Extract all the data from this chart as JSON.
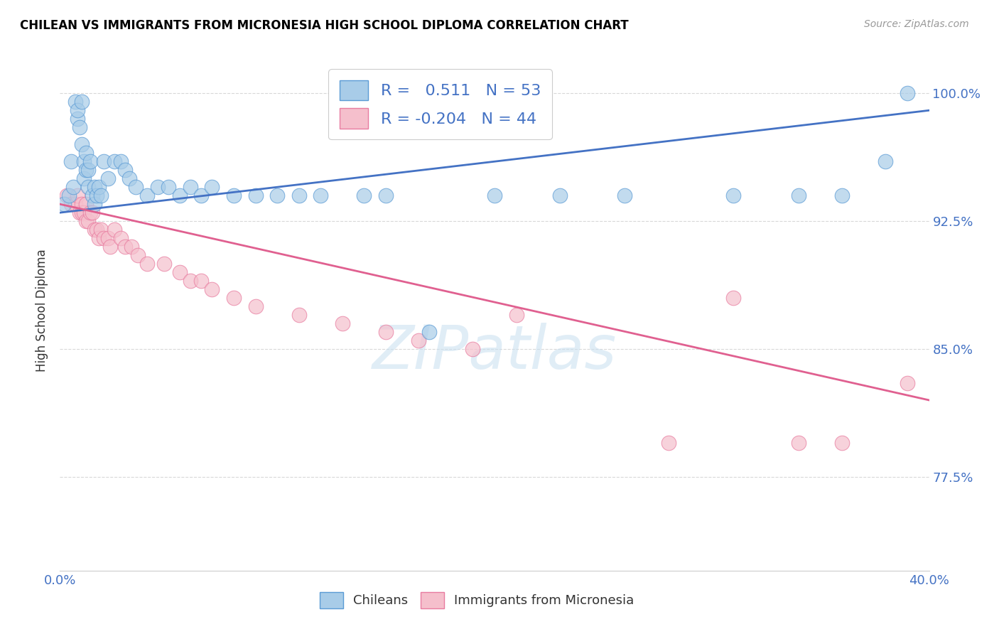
{
  "title": "CHILEAN VS IMMIGRANTS FROM MICRONESIA HIGH SCHOOL DIPLOMA CORRELATION CHART",
  "source": "Source: ZipAtlas.com",
  "ylabel": "High School Diploma",
  "ytick_labels": [
    "100.0%",
    "92.5%",
    "85.0%",
    "77.5%"
  ],
  "ytick_values": [
    1.0,
    0.925,
    0.85,
    0.775
  ],
  "watermark": "ZIPatlas",
  "legend_blue_r_val": "0.511",
  "legend_blue_n": "N = 53",
  "legend_pink_r_val": "-0.204",
  "legend_pink_n": "N = 44",
  "blue_color": "#a8cce8",
  "pink_color": "#f5bfcc",
  "blue_edge_color": "#5b9bd5",
  "pink_edge_color": "#e87ca0",
  "blue_line_color": "#4472c4",
  "pink_line_color": "#e06090",
  "xlim": [
    0.0,
    0.4
  ],
  "ylim": [
    0.72,
    1.025
  ],
  "blue_scatter_x": [
    0.002,
    0.004,
    0.005,
    0.006,
    0.007,
    0.008,
    0.008,
    0.009,
    0.01,
    0.01,
    0.011,
    0.011,
    0.012,
    0.012,
    0.013,
    0.013,
    0.014,
    0.015,
    0.016,
    0.016,
    0.017,
    0.018,
    0.019,
    0.02,
    0.022,
    0.025,
    0.028,
    0.03,
    0.032,
    0.035,
    0.04,
    0.045,
    0.05,
    0.055,
    0.06,
    0.065,
    0.07,
    0.08,
    0.09,
    0.1,
    0.11,
    0.12,
    0.14,
    0.15,
    0.17,
    0.2,
    0.23,
    0.26,
    0.31,
    0.34,
    0.36,
    0.38,
    0.39
  ],
  "blue_scatter_y": [
    0.935,
    0.94,
    0.96,
    0.945,
    0.995,
    0.985,
    0.99,
    0.98,
    0.97,
    0.995,
    0.95,
    0.96,
    0.955,
    0.965,
    0.945,
    0.955,
    0.96,
    0.94,
    0.935,
    0.945,
    0.94,
    0.945,
    0.94,
    0.96,
    0.95,
    0.96,
    0.96,
    0.955,
    0.95,
    0.945,
    0.94,
    0.945,
    0.945,
    0.94,
    0.945,
    0.94,
    0.945,
    0.94,
    0.94,
    0.94,
    0.94,
    0.94,
    0.94,
    0.94,
    0.86,
    0.94,
    0.94,
    0.94,
    0.94,
    0.94,
    0.94,
    0.96,
    1.0
  ],
  "pink_scatter_x": [
    0.003,
    0.005,
    0.007,
    0.008,
    0.009,
    0.01,
    0.01,
    0.011,
    0.012,
    0.012,
    0.013,
    0.014,
    0.015,
    0.016,
    0.017,
    0.018,
    0.019,
    0.02,
    0.022,
    0.023,
    0.025,
    0.028,
    0.03,
    0.033,
    0.036,
    0.04,
    0.048,
    0.055,
    0.06,
    0.065,
    0.07,
    0.08,
    0.09,
    0.11,
    0.13,
    0.15,
    0.165,
    0.19,
    0.21,
    0.28,
    0.31,
    0.34,
    0.36,
    0.39
  ],
  "pink_scatter_y": [
    0.94,
    0.935,
    0.935,
    0.94,
    0.93,
    0.93,
    0.935,
    0.93,
    0.925,
    0.935,
    0.925,
    0.93,
    0.93,
    0.92,
    0.92,
    0.915,
    0.92,
    0.915,
    0.915,
    0.91,
    0.92,
    0.915,
    0.91,
    0.91,
    0.905,
    0.9,
    0.9,
    0.895,
    0.89,
    0.89,
    0.885,
    0.88,
    0.875,
    0.87,
    0.865,
    0.86,
    0.855,
    0.85,
    0.87,
    0.795,
    0.88,
    0.795,
    0.795,
    0.83
  ],
  "blue_line_x": [
    0.0,
    0.4
  ],
  "blue_line_y": [
    0.93,
    0.99
  ],
  "pink_line_x": [
    0.0,
    0.4
  ],
  "pink_line_y": [
    0.935,
    0.82
  ],
  "background_color": "#ffffff",
  "grid_color": "#d8d8d8"
}
